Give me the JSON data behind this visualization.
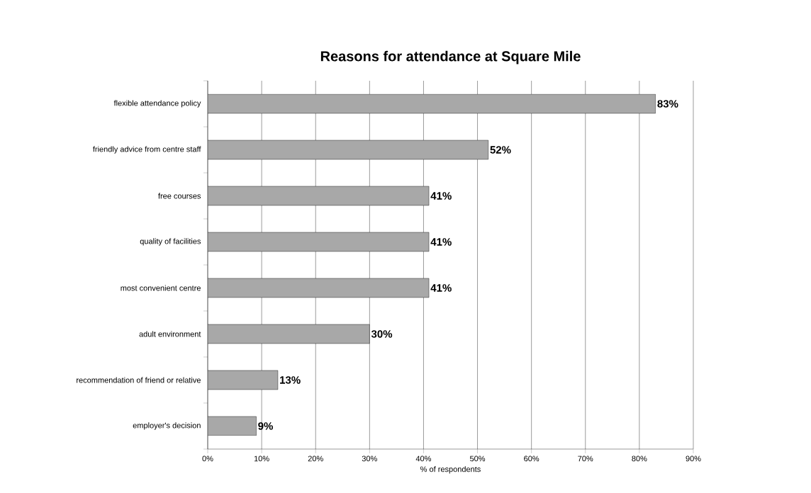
{
  "chart_data": {
    "type": "bar",
    "orientation": "horizontal",
    "title": "Reasons for attendance at Square Mile",
    "xlabel": "% of respondents",
    "categories": [
      "flexible attendance policy",
      "friendly advice from centre staff",
      "free courses",
      "quality of facilities",
      "most convenient centre",
      "adult environment",
      "recommendation of friend or relative",
      "employer's decision"
    ],
    "values": [
      83,
      52,
      41,
      41,
      41,
      30,
      13,
      9
    ],
    "value_labels": [
      "83%",
      "52%",
      "41%",
      "41%",
      "41%",
      "30%",
      "13%",
      "9%"
    ],
    "color": "#a8a8a8",
    "xlim": [
      0,
      90
    ],
    "xticks": [
      {
        "value": 0,
        "label": "0%"
      },
      {
        "value": 10,
        "label": "10%"
      },
      {
        "value": 20,
        "label": "20%"
      },
      {
        "value": 30,
        "label": "30%"
      },
      {
        "value": 40,
        "label": "40%"
      },
      {
        "value": 50,
        "label": "50%"
      },
      {
        "value": 60,
        "label": "60%"
      },
      {
        "value": 70,
        "label": "70%"
      },
      {
        "value": 80,
        "label": "80%"
      },
      {
        "value": 90,
        "label": "90%"
      }
    ],
    "grid": "x"
  }
}
